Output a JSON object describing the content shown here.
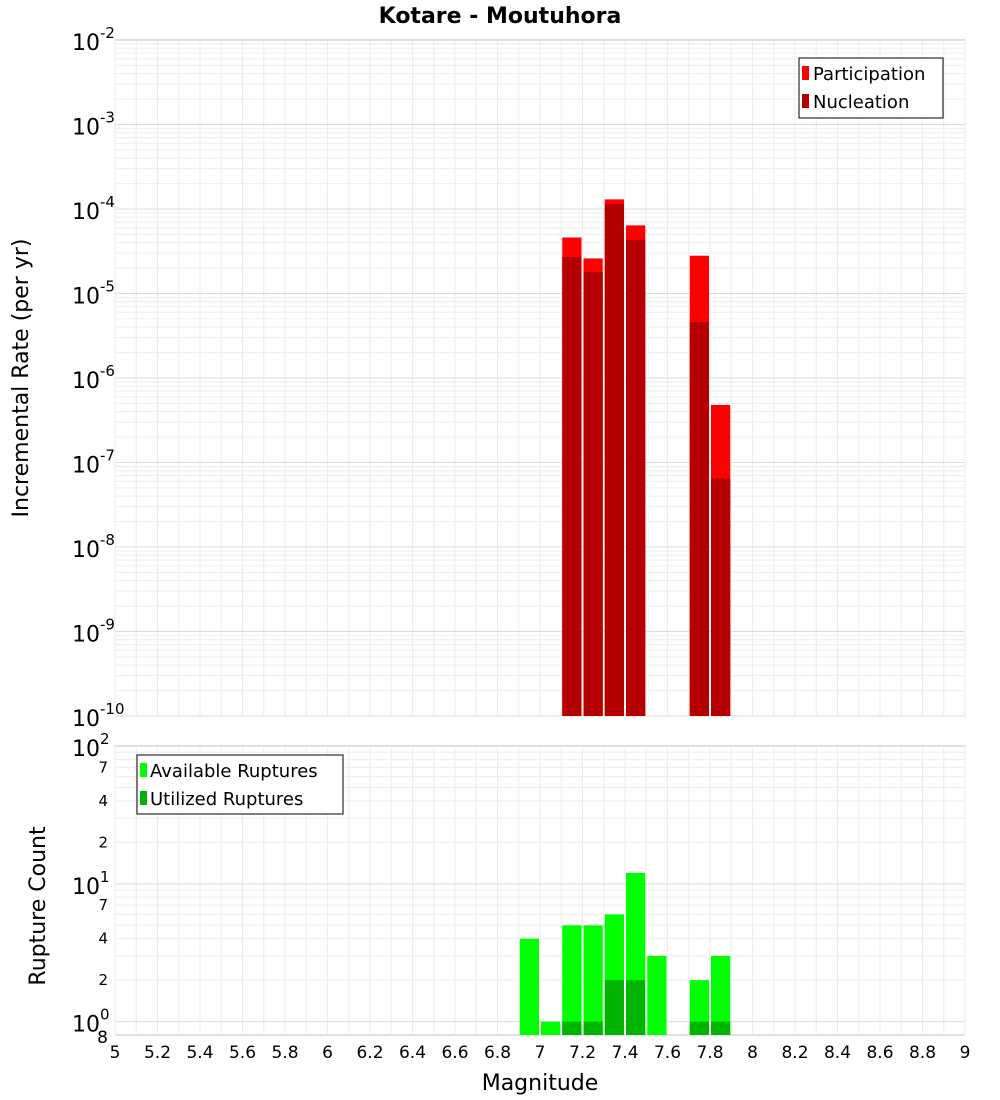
{
  "chart_data": {
    "type": "bar",
    "title": "Kotare - Moutuhora",
    "xlabel": "Magnitude",
    "xlim": [
      5,
      9
    ],
    "x_ticks": [
      "5",
      "5.2",
      "5.4",
      "5.6",
      "5.8",
      "6",
      "6.2",
      "6.4",
      "6.6",
      "6.8",
      "7",
      "7.2",
      "7.4",
      "7.6",
      "7.8",
      "8",
      "8.2",
      "8.4",
      "8.6",
      "8.8",
      "9"
    ],
    "top": {
      "ylabel": "Incremental Rate (per yr)",
      "yscale": "log",
      "ylim": [
        1e-10,
        0.01
      ],
      "y_ticks": [
        {
          "base": "10",
          "exp": "-10"
        },
        {
          "base": "10",
          "exp": "-9"
        },
        {
          "base": "10",
          "exp": "-8"
        },
        {
          "base": "10",
          "exp": "-7"
        },
        {
          "base": "10",
          "exp": "-6"
        },
        {
          "base": "10",
          "exp": "-5"
        },
        {
          "base": "10",
          "exp": "-4"
        },
        {
          "base": "10",
          "exp": "-3"
        },
        {
          "base": "10",
          "exp": "-2"
        }
      ],
      "legend": [
        "Participation",
        "Nucleation"
      ],
      "colors": {
        "participation": "#ff0000",
        "nucleation": "#b40000"
      },
      "categories": [
        7.15,
        7.25,
        7.35,
        7.45,
        7.75,
        7.85
      ],
      "series": [
        {
          "name": "Participation",
          "values": [
            4.6e-05,
            2.6e-05,
            0.00013,
            6.4e-05,
            2.8e-05,
            4.8e-07
          ]
        },
        {
          "name": "Nucleation",
          "values": [
            2.7e-05,
            1.8e-05,
            0.000115,
            4.3e-05,
            4.6e-06,
            6.5e-08
          ]
        }
      ]
    },
    "bottom": {
      "ylabel": "Rupture Count",
      "yscale": "log",
      "ylim": [
        0.8,
        100
      ],
      "y_ticks": [
        {
          "base": "10",
          "exp": "0"
        },
        {
          "minor": "2"
        },
        {
          "minor": "4"
        },
        {
          "minor": "7"
        },
        {
          "base": "10",
          "exp": "1"
        },
        {
          "minor": "2"
        },
        {
          "minor": "4"
        },
        {
          "minor": "7"
        },
        {
          "base": "10",
          "exp": "2"
        }
      ],
      "bottom_tick_label": "8",
      "legend": [
        "Available Ruptures",
        "Utilized Ruptures"
      ],
      "colors": {
        "available": "#00ff00",
        "utilized": "#00b400"
      },
      "categories": [
        6.95,
        7.05,
        7.15,
        7.25,
        7.35,
        7.45,
        7.55,
        7.75,
        7.85
      ],
      "series": [
        {
          "name": "Available Ruptures",
          "values": [
            4,
            1,
            5,
            5,
            6,
            12,
            3,
            2,
            3
          ]
        },
        {
          "name": "Utilized Ruptures",
          "values": [
            0,
            0,
            1,
            1,
            2,
            2,
            0,
            1,
            1
          ]
        }
      ]
    }
  }
}
